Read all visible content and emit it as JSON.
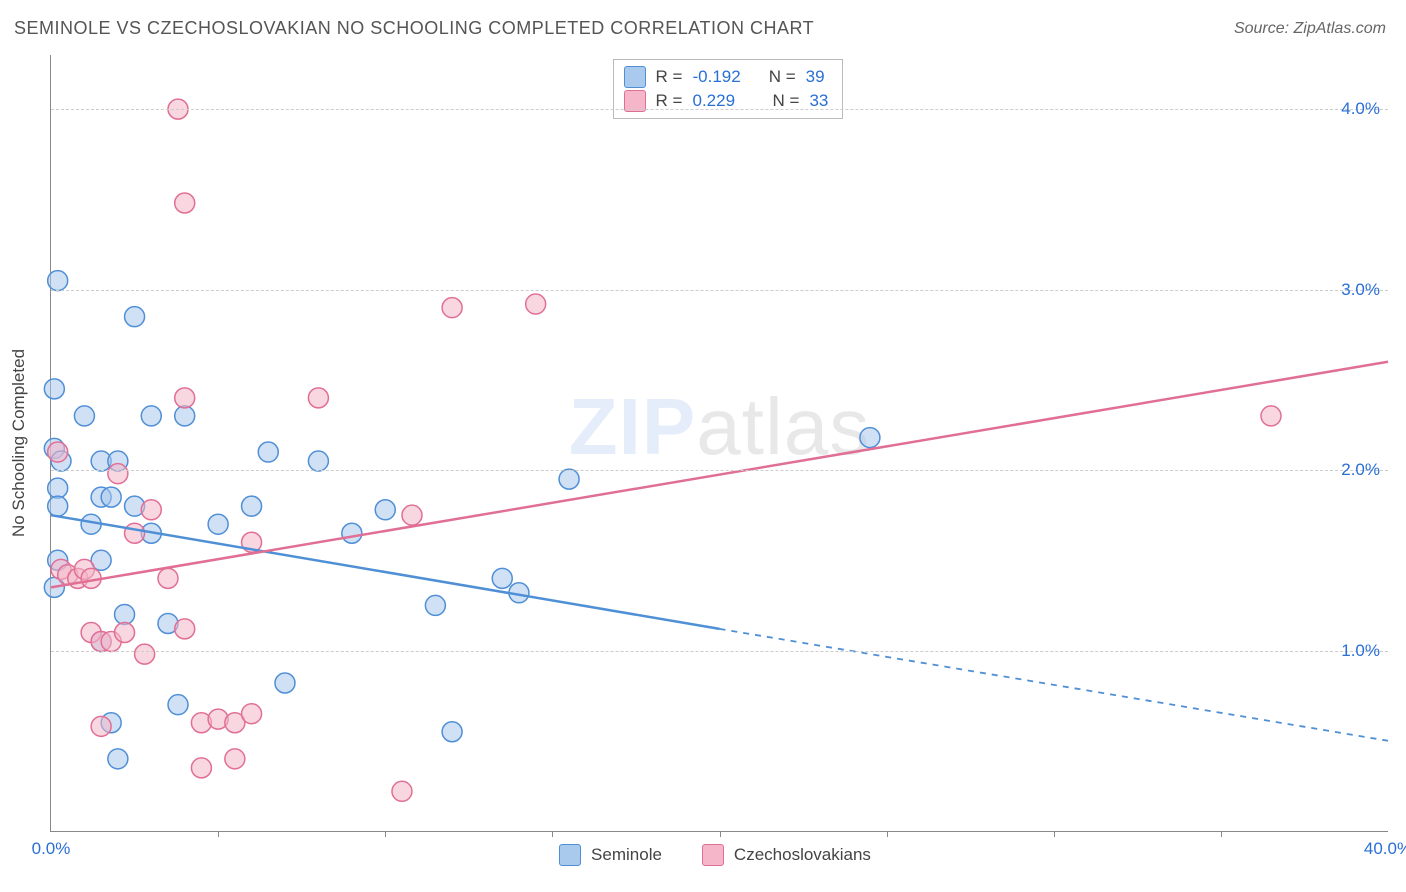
{
  "title": "SEMINOLE VS CZECHOSLOVAKIAN NO SCHOOLING COMPLETED CORRELATION CHART",
  "source": "Source: ZipAtlas.com",
  "watermark_zip": "ZIP",
  "watermark_atlas": "atlas",
  "ylabel": "No Schooling Completed",
  "chart": {
    "type": "scatter-with-trendlines",
    "background_color": "#ffffff",
    "grid_color": "#cccccc",
    "axis_color": "#888888",
    "tick_color": "#2a6fd6",
    "xlim": [
      0,
      40
    ],
    "ylim": [
      0,
      4.3
    ],
    "xticks": [
      0,
      40
    ],
    "xtick_labels": [
      "0.0%",
      "40.0%"
    ],
    "xtick_minor": [
      5,
      10,
      15,
      20,
      25,
      30,
      35
    ],
    "yticks": [
      1,
      2,
      3,
      4
    ],
    "ytick_labels": [
      "1.0%",
      "2.0%",
      "3.0%",
      "4.0%"
    ],
    "marker_radius": 10,
    "marker_stroke_width": 1.5,
    "trend_line_width": 2.5,
    "series": [
      {
        "name": "Seminole",
        "fill": "#a9c9ed",
        "fill_opacity": 0.55,
        "stroke": "#4f8fd6",
        "R": "-0.192",
        "N": "39",
        "trend": {
          "start": [
            0,
            1.75
          ],
          "end_solid": [
            20,
            1.12
          ],
          "end_dash": [
            40,
            0.5
          ]
        },
        "points": [
          [
            0.2,
            3.05
          ],
          [
            0.1,
            2.45
          ],
          [
            0.1,
            2.12
          ],
          [
            0.2,
            1.9
          ],
          [
            0.2,
            1.8
          ],
          [
            0.3,
            2.05
          ],
          [
            0.2,
            1.5
          ],
          [
            0.1,
            1.35
          ],
          [
            1.0,
            2.3
          ],
          [
            1.5,
            2.05
          ],
          [
            1.5,
            1.85
          ],
          [
            1.2,
            1.7
          ],
          [
            1.8,
            1.85
          ],
          [
            1.5,
            1.5
          ],
          [
            1.5,
            1.05
          ],
          [
            1.8,
            0.6
          ],
          [
            2.0,
            2.05
          ],
          [
            2.5,
            1.8
          ],
          [
            2.2,
            1.2
          ],
          [
            2.0,
            0.4
          ],
          [
            2.5,
            2.85
          ],
          [
            3.0,
            2.3
          ],
          [
            3.0,
            1.65
          ],
          [
            3.5,
            1.15
          ],
          [
            3.8,
            0.7
          ],
          [
            4.0,
            2.3
          ],
          [
            5.0,
            1.7
          ],
          [
            6.0,
            1.8
          ],
          [
            6.5,
            2.1
          ],
          [
            7.0,
            0.82
          ],
          [
            8.0,
            2.05
          ],
          [
            9.0,
            1.65
          ],
          [
            10.0,
            1.78
          ],
          [
            11.5,
            1.25
          ],
          [
            12.0,
            0.55
          ],
          [
            13.5,
            1.4
          ],
          [
            14.0,
            1.32
          ],
          [
            15.5,
            1.95
          ],
          [
            24.5,
            2.18
          ]
        ]
      },
      {
        "name": "Czechoslovakians",
        "fill": "#f4b6c8",
        "fill_opacity": 0.55,
        "stroke": "#e16f95",
        "R": "0.229",
        "N": "33",
        "trend": {
          "start": [
            0,
            1.35
          ],
          "end_solid": [
            40,
            2.6
          ],
          "end_dash": null
        },
        "points": [
          [
            0.2,
            2.1
          ],
          [
            0.3,
            1.45
          ],
          [
            0.5,
            1.42
          ],
          [
            0.8,
            1.4
          ],
          [
            1.0,
            1.45
          ],
          [
            1.2,
            1.4
          ],
          [
            1.2,
            1.1
          ],
          [
            1.5,
            1.05
          ],
          [
            1.8,
            1.05
          ],
          [
            1.5,
            0.58
          ],
          [
            2.0,
            1.98
          ],
          [
            2.5,
            1.65
          ],
          [
            2.2,
            1.1
          ],
          [
            2.8,
            0.98
          ],
          [
            3.0,
            1.78
          ],
          [
            3.5,
            1.4
          ],
          [
            3.8,
            4.0
          ],
          [
            4.0,
            2.4
          ],
          [
            4.0,
            1.12
          ],
          [
            4.0,
            3.48
          ],
          [
            4.5,
            0.6
          ],
          [
            4.5,
            0.35
          ],
          [
            5.0,
            0.62
          ],
          [
            5.5,
            0.6
          ],
          [
            5.5,
            0.4
          ],
          [
            6.0,
            0.65
          ],
          [
            6.0,
            1.6
          ],
          [
            8.0,
            2.4
          ],
          [
            10.5,
            0.22
          ],
          [
            10.8,
            1.75
          ],
          [
            12.0,
            2.9
          ],
          [
            14.5,
            2.92
          ],
          [
            36.5,
            2.3
          ]
        ]
      }
    ]
  },
  "legend_bottom": [
    {
      "label": "Seminole",
      "fill": "#a9c9ed",
      "stroke": "#4f8fd6"
    },
    {
      "label": "Czechoslovakians",
      "fill": "#f4b6c8",
      "stroke": "#e16f95"
    }
  ],
  "stats_legend": {
    "R_label": "R",
    "N_label": "N",
    "eq": "="
  }
}
